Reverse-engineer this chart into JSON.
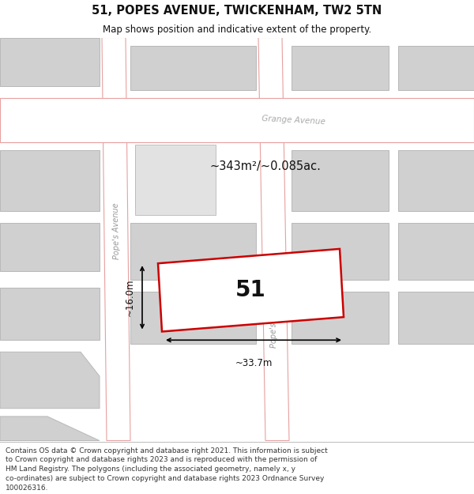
{
  "title_line1": "51, POPES AVENUE, TWICKENHAM, TW2 5TN",
  "title_line2": "Map shows position and indicative extent of the property.",
  "footer_lines": [
    "Contains OS data © Crown copyright and database right 2021. This information is subject",
    "to Crown copyright and database rights 2023 and is reproduced with the permission of",
    "HM Land Registry. The polygons (including the associated geometry, namely x, y",
    "co-ordinates) are subject to Crown copyright and database rights 2023 Ordnance Survey",
    "100026316."
  ],
  "map_bg": "#f0efed",
  "road_color": "#ffffff",
  "block_color": "#d0d0d0",
  "block_edge_color": "#b8b8b8",
  "plot_fc": "#ffffff",
  "plot_ec": "#cc0000",
  "road_outline_color": "#e8a0a0",
  "area_text": "~343m²/~0.085ac.",
  "width_text": "~33.7m",
  "height_text": "~16.0m",
  "label_text": "51",
  "title_fontsize": 10.5,
  "subtitle_fontsize": 8.5,
  "footer_fontsize": 6.5,
  "label_fontsize": 20,
  "area_fontsize": 10.5,
  "dim_fontsize": 8.5
}
